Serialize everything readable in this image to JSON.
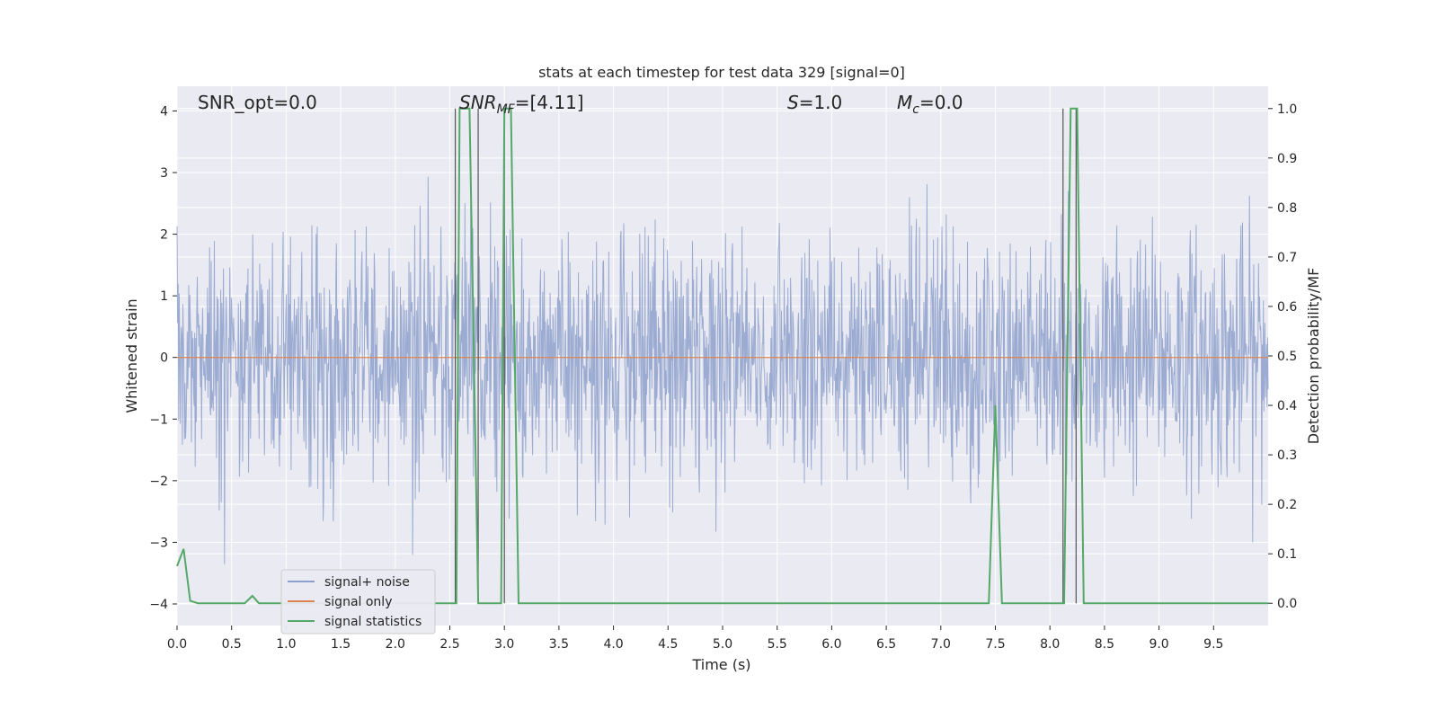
{
  "chart_data": {
    "type": "line",
    "title": "stats at each timestep for test data 329 [signal=0]",
    "xlabel": "Time (s)",
    "ylabel": "Whitened strain",
    "y2label": "Detection probability/MF",
    "xlim": [
      0,
      10
    ],
    "ylim": [
      -4.35,
      4.4
    ],
    "y2lim": [
      -0.045,
      1.045
    ],
    "xticks": [
      "0.0",
      "0.5",
      "1.0",
      "1.5",
      "2.0",
      "2.5",
      "3.0",
      "3.5",
      "4.0",
      "4.5",
      "5.0",
      "5.5",
      "6.0",
      "6.5",
      "7.0",
      "7.5",
      "8.0",
      "8.5",
      "9.0",
      "9.5"
    ],
    "yticks": [
      "4",
      "3",
      "2",
      "1",
      "0",
      "−1",
      "−2",
      "−3",
      "−4"
    ],
    "y2ticks": [
      "1.0",
      "0.9",
      "0.8",
      "0.7",
      "0.6",
      "0.5",
      "0.4",
      "0.3",
      "0.2",
      "0.1",
      "0.0"
    ],
    "grid": true,
    "legend_position": "lower-left",
    "annotations": {
      "snr_opt": "SNR_opt=0.0",
      "snr_mf_main": "SNR",
      "snr_mf_sub": "MF",
      "snr_mf_value": "=[4.11]",
      "s_main": "S",
      "s_value": "=1.0",
      "mc_main": "M",
      "mc_sub": "c",
      "mc_value": "=0.0"
    },
    "series": [
      {
        "name": "signal+ noise",
        "color": "#8da0cb",
        "kind": "noise",
        "seed": 329,
        "sigma": 1.0,
        "samples": 2048
      },
      {
        "name": "signal only",
        "color": "#dd8452",
        "y": [
          0,
          0
        ],
        "x": [
          0,
          10
        ]
      },
      {
        "name": "signal statistics",
        "color": "#55a868",
        "axis": "right",
        "x": [
          0,
          0.06,
          0.12,
          0.19,
          0.62,
          0.69,
          0.75,
          2.56,
          2.59,
          2.62,
          2.68,
          2.76,
          2.79,
          2.97,
          3.0,
          3.06,
          3.13,
          3.19,
          3.25,
          7.44,
          7.5,
          7.56,
          8.13,
          8.19,
          8.25,
          8.31,
          8.38,
          10.0
        ],
        "y": [
          0.075,
          0.11,
          0.005,
          0.0,
          0.0,
          0.015,
          0.0,
          0.0,
          1.0,
          1.0,
          1.0,
          0.0,
          0.0,
          0.0,
          1.0,
          1.0,
          0.0,
          0.0,
          0.0,
          0.0,
          0.4,
          0.0,
          0.0,
          1.0,
          1.0,
          0.0,
          0.0,
          0.0
        ]
      }
    ],
    "vertical_lines": [
      2.55,
      2.76,
      3.0,
      8.12,
      8.24
    ],
    "vertical_line_color": "#555555"
  }
}
